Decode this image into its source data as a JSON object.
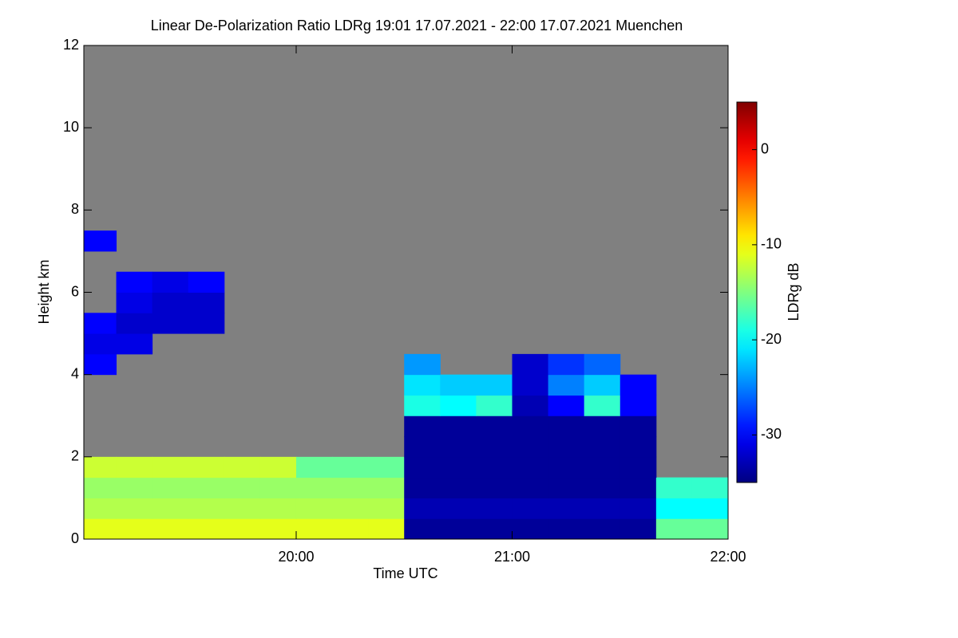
{
  "chart_data": {
    "type": "heatmap",
    "title": "Linear De-Polarization Ratio LDRg   19:01 17.07.2021 - 22:00 17.07.2021 Muenchen",
    "x_label": "Time UTC",
    "y_label": "Height km",
    "colorbar_label": "LDRg dB",
    "xlim": [
      19.0167,
      22.0
    ],
    "xticks": [
      {
        "value": 20,
        "label": "20:00"
      },
      {
        "value": 21,
        "label": "21:00"
      },
      {
        "value": 22,
        "label": "22:00"
      }
    ],
    "ylim": [
      0,
      12
    ],
    "yticks": [
      0,
      2,
      4,
      6,
      8,
      10,
      12
    ],
    "clim": [
      -35,
      5
    ],
    "cticks": [
      0,
      -10,
      -20,
      -30
    ],
    "colormap": "jet",
    "background": "#808080",
    "x_edges": [
      19.0167,
      19.1667,
      19.3333,
      19.5,
      19.6667,
      19.8333,
      20,
      20.1667,
      20.3333,
      20.5,
      20.6667,
      20.8333,
      21,
      21.1667,
      21.3333,
      21.5,
      21.6667,
      21.8333,
      22
    ],
    "y_edges": [
      0,
      0.5,
      1,
      1.5,
      2,
      2.5,
      3,
      3.5,
      4,
      4.5,
      5,
      5.5,
      6,
      6.5,
      7,
      7.5
    ],
    "z": [
      [
        -11,
        -11,
        -11,
        -11,
        -11,
        -11,
        -11,
        -11,
        -11,
        -34,
        -34,
        -34,
        -34,
        -34,
        -34,
        -34,
        -16,
        -16
      ],
      [
        -13,
        -13,
        -13,
        -13,
        -13,
        -13,
        -13,
        -13,
        -13,
        -33,
        -33,
        -33,
        -33,
        -33,
        -33,
        -33,
        -20,
        -20
      ],
      [
        -14,
        -14,
        -14,
        -14,
        -14,
        -14,
        -14,
        -14,
        -14,
        -34,
        -34,
        -34,
        -34,
        -34,
        -34,
        -34,
        -18,
        -18
      ],
      [
        -12,
        -12,
        -12,
        -12,
        -12,
        -12,
        -16,
        -16,
        -16,
        -34,
        -34,
        -34,
        -34,
        -34,
        -34,
        -34,
        null,
        null
      ],
      [
        null,
        null,
        null,
        null,
        null,
        null,
        null,
        null,
        null,
        -34,
        -34,
        -34,
        -34,
        -34,
        -34,
        -34,
        null,
        null
      ],
      [
        null,
        null,
        null,
        null,
        null,
        null,
        null,
        null,
        null,
        -34,
        -34,
        -34,
        -34,
        -34,
        -34,
        -34,
        null,
        null
      ],
      [
        null,
        null,
        null,
        null,
        null,
        null,
        null,
        null,
        null,
        -19,
        -20,
        -18,
        -33,
        -30,
        -18,
        -30,
        null,
        null
      ],
      [
        null,
        null,
        null,
        null,
        null,
        null,
        null,
        null,
        null,
        -21,
        -22,
        -22,
        -32,
        -25,
        -22,
        -30,
        null,
        null
      ],
      [
        -30,
        null,
        null,
        null,
        null,
        null,
        null,
        null,
        null,
        -24,
        null,
        null,
        -32,
        -28,
        -26,
        null,
        null,
        null
      ],
      [
        -31,
        -31,
        null,
        null,
        null,
        null,
        null,
        null,
        null,
        null,
        null,
        null,
        null,
        null,
        null,
        null,
        null,
        null
      ],
      [
        -30,
        -32,
        -32,
        -32,
        null,
        null,
        null,
        null,
        null,
        null,
        null,
        null,
        null,
        null,
        null,
        null,
        null,
        null
      ],
      [
        null,
        -31,
        -32,
        -32,
        null,
        null,
        null,
        null,
        null,
        null,
        null,
        null,
        null,
        null,
        null,
        null,
        null,
        null
      ],
      [
        null,
        -30,
        -31,
        -30,
        null,
        null,
        null,
        null,
        null,
        null,
        null,
        null,
        null,
        null,
        null,
        null,
        null,
        null
      ],
      [
        null,
        null,
        null,
        null,
        null,
        null,
        null,
        null,
        null,
        null,
        null,
        null,
        null,
        null,
        null,
        null,
        null,
        null
      ],
      [
        -30,
        null,
        null,
        null,
        null,
        null,
        null,
        null,
        null,
        null,
        null,
        null,
        null,
        null,
        null,
        null,
        null,
        null
      ]
    ]
  }
}
